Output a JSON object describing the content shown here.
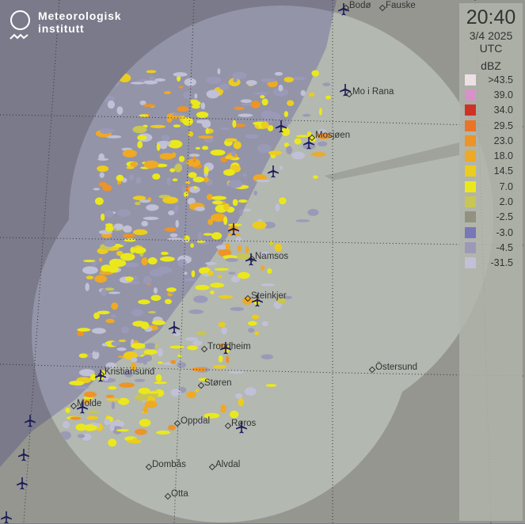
{
  "branding": {
    "line1": "Meteorologisk",
    "line2": "institutt"
  },
  "legend": {
    "time": "20:40",
    "date": "3/4 2025",
    "timezone": "UTC",
    "unit": "dBZ",
    "levels": [
      {
        "label": ">43.5",
        "color": "#ece0e4"
      },
      {
        "label": "39.0",
        "color": "#d891c9"
      },
      {
        "label": "34.0",
        "color": "#cc3325"
      },
      {
        "label": "29.5",
        "color": "#ea7428"
      },
      {
        "label": "23.0",
        "color": "#ec9428"
      },
      {
        "label": "18.0",
        "color": "#eeaa24"
      },
      {
        "label": "14.5",
        "color": "#eccc1e"
      },
      {
        "label": "7.0",
        "color": "#eae81c"
      },
      {
        "label": "2.0",
        "color": "#c8c654"
      },
      {
        "label": "-2.5",
        "color": "#929280"
      },
      {
        "label": "-3.0",
        "color": "#7878b8"
      },
      {
        "label": "-4.5",
        "color": "#9a9ab8"
      },
      {
        "label": "-31.5",
        "color": "#c0c0d6"
      }
    ]
  },
  "cities": [
    "Bodø",
    "Fauske",
    "Mo i Rana",
    "Mosjøen",
    "Namsos",
    "Steinkjer",
    "Trondheim",
    "Kristiansund",
    "Molde",
    "Støren",
    "Oppdal",
    "Røros",
    "Dombås",
    "Alvdal",
    "Otta",
    "Östersund"
  ],
  "colors": {
    "sea_outside": "#7b7a8a",
    "land_outside": "#959690",
    "sea_inside": "#9394a8",
    "land_inside": "#b3b8b0",
    "airport": "#1c1c5a"
  }
}
